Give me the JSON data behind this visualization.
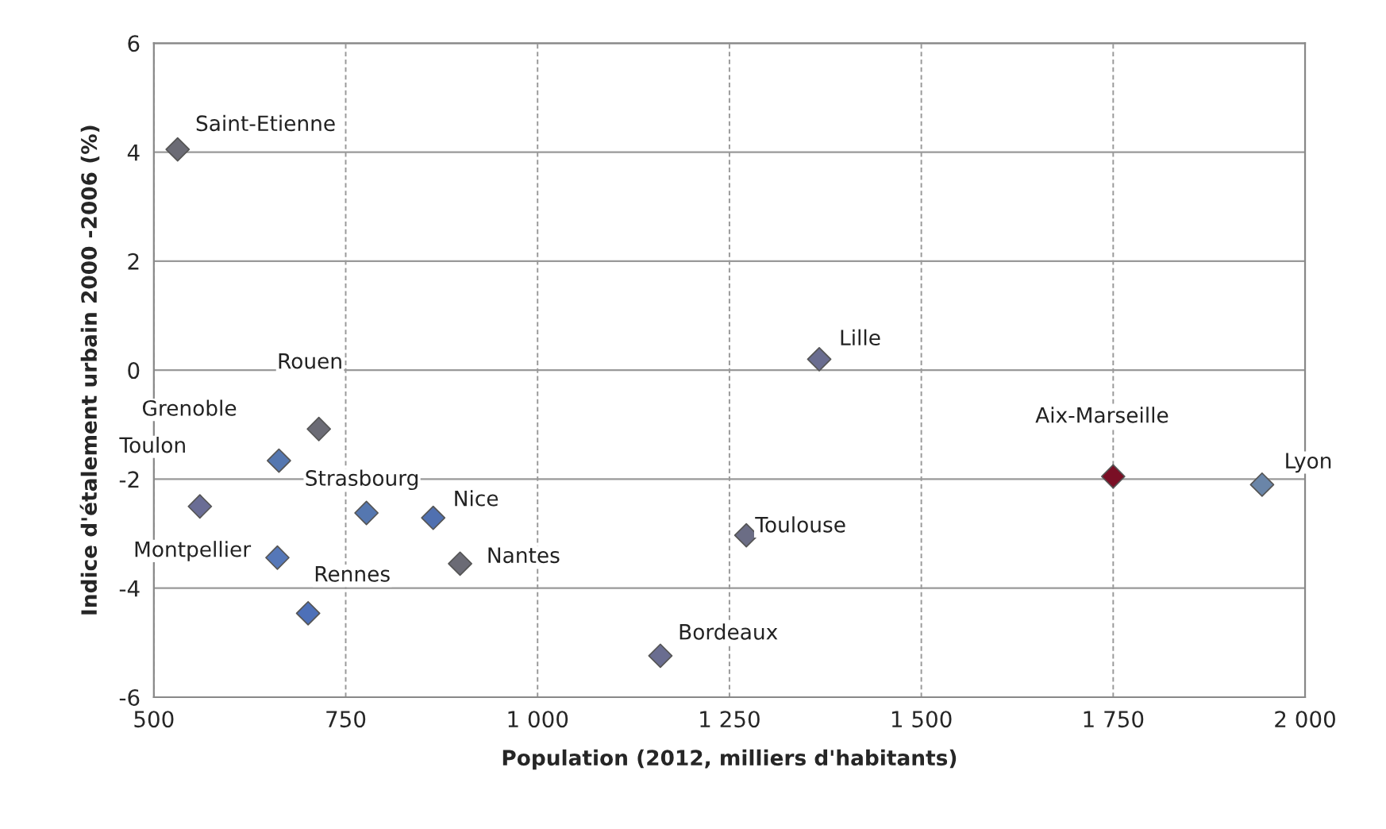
{
  "chart_data": {
    "type": "scatter",
    "xlabel": "Population (2012, milliers d'habitants)",
    "ylabel": "Indice d'étalement urbain 2000 -2006 (%)",
    "xlim": [
      500,
      2000
    ],
    "xticks": [
      500,
      750,
      {
        "value": 1000,
        "label": "1 000"
      },
      {
        "value": 1250,
        "label": "1 250"
      },
      {
        "value": 1500,
        "label": "1 500"
      },
      {
        "value": 1750,
        "label": "1 750"
      },
      {
        "value": 2000,
        "label": "2 000"
      }
    ],
    "ylim": [
      -6,
      6
    ],
    "yticks": [
      -6,
      -4,
      -2,
      0,
      2,
      4,
      6
    ],
    "grid": true,
    "marker": "diamond",
    "legend": false,
    "series": [
      {
        "name": "Saint-Etienne",
        "color": "#6b6b75",
        "x": [
          531
        ],
        "values": [
          4.05
        ]
      },
      {
        "name": "Rouen",
        "color": "#6b6b75",
        "x": [
          715
        ],
        "values": [
          -1.08
        ]
      },
      {
        "name": "Grenoble",
        "color": "#5577b0",
        "x": [
          663
        ],
        "values": [
          -1.66
        ]
      },
      {
        "name": "Toulon",
        "color": "#6a6d95",
        "x": [
          560
        ],
        "values": [
          -2.5
        ]
      },
      {
        "name": "Strasbourg",
        "color": "#5577b0",
        "x": [
          777
        ],
        "values": [
          -2.62
        ]
      },
      {
        "name": "Nice",
        "color": "#5070b0",
        "x": [
          864
        ],
        "values": [
          -2.71
        ]
      },
      {
        "name": "Montpellier",
        "color": "#5577b8",
        "x": [
          661
        ],
        "values": [
          -3.44
        ]
      },
      {
        "name": "Nantes",
        "color": "#6b6b75",
        "x": [
          899
        ],
        "values": [
          -3.55
        ]
      },
      {
        "name": "Rennes",
        "color": "#4d70b8",
        "x": [
          701
        ],
        "values": [
          -4.46
        ]
      },
      {
        "name": "Bordeaux",
        "color": "#6a6d90",
        "x": [
          1160
        ],
        "values": [
          -5.24
        ]
      },
      {
        "name": "Toulouse",
        "color": "#6b6d85",
        "x": [
          1272
        ],
        "values": [
          -3.03
        ]
      },
      {
        "name": "Lille",
        "color": "#6a6d90",
        "x": [
          1367
        ],
        "values": [
          0.2
        ]
      },
      {
        "name": "Aix-Marseille",
        "color": "#7a0f25",
        "x": [
          1750
        ],
        "values": [
          -1.95
        ]
      },
      {
        "name": "Lyon",
        "color": "#6a85a8",
        "x": [
          1944
        ],
        "values": [
          -2.1
        ]
      }
    ]
  }
}
